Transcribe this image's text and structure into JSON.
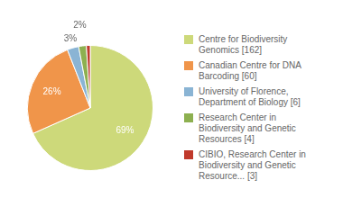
{
  "chart_data": {
    "type": "pie",
    "categories": [
      "Centre for Biodiversity\nGenomics [162]",
      "Canadian Centre for DNA\nBarcoding [60]",
      "University of Florence,\nDepartment of Biology [6]",
      "Research Center in\nBiodiversity and Genetic\nResources [4]",
      "CIBIO, Research Center in\nBiodiversity and Genetic\nResource... [3]"
    ],
    "values": [
      69,
      26,
      3,
      2,
      1
    ],
    "value_labels": [
      "69%",
      "26%",
      "3%",
      "2%",
      null
    ],
    "colors": [
      "#cdd97a",
      "#f0954a",
      "#8ab4d4",
      "#8db050",
      "#c0392b"
    ],
    "data_labels": true,
    "legend": "right"
  }
}
